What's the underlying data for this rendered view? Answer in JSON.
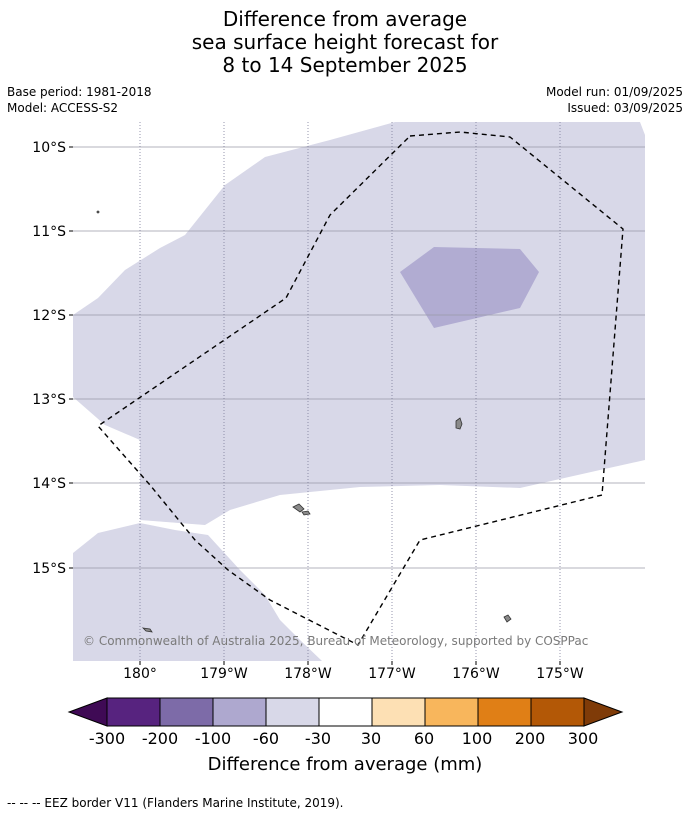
{
  "title": {
    "line1": "Difference from average",
    "line2": "sea surface height forecast for",
    "line3": "8 to 14 September 2025"
  },
  "meta": {
    "base_period": "Base period: 1981-2018",
    "model": "Model: ACCESS-S2",
    "model_run": "Model run: 01/09/2025",
    "issued": "Issued: 03/09/2025"
  },
  "map": {
    "lat_labels": [
      "10°S",
      "11°S",
      "12°S",
      "13°S",
      "14°S",
      "15°S"
    ],
    "lon_labels": [
      "180°",
      "179°W",
      "178°W",
      "177°W",
      "176°W",
      "175°W"
    ],
    "copyright": "© Commonwealth of Australia 2025, Bureau of Meteorology, supported by COSPPac"
  },
  "colorbar": {
    "title": "Difference from average (mm)",
    "ticks": [
      "-300",
      "-200",
      "-100",
      "-60",
      "-30",
      "30",
      "60",
      "100",
      "200",
      "300"
    ],
    "colors": [
      "#3f0a55",
      "#57237f",
      "#7d6ba8",
      "#aea8cf",
      "#d8d8e8",
      "#ffffff",
      "#fde0b4",
      "#f8b65c",
      "#e07f16",
      "#b35806",
      "#7f3b08"
    ]
  },
  "footnote": "--  --  -- EEZ border V11 (Flanders Marine Institute, 2019)."
}
